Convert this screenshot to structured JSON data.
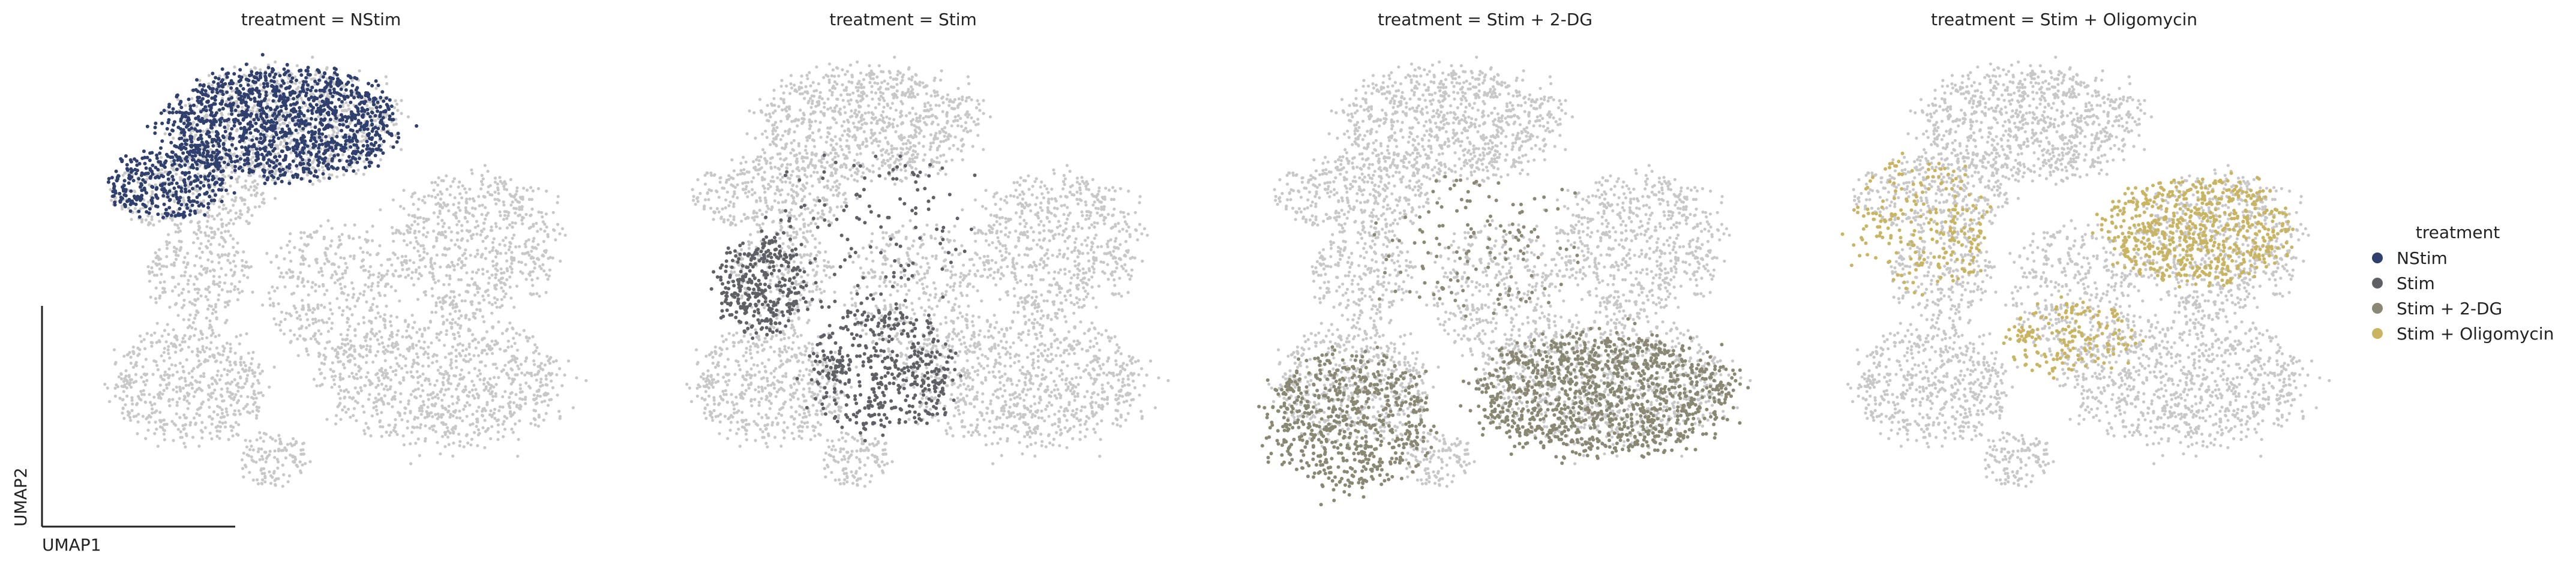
{
  "chart_data": {
    "type": "scatter",
    "grid": false,
    "xlabel": "UMAP1",
    "ylabel": "UMAP2",
    "background_color": "#c8c8c8",
    "legend": {
      "title": "treatment",
      "placement": "right",
      "entries": [
        {
          "name": "NStim",
          "color": "#2f3f6e"
        },
        {
          "name": "Stim",
          "color": "#5f6066"
        },
        {
          "name": "Stim + 2-DG",
          "color": "#8a8872"
        },
        {
          "name": "Stim + Oligomycin",
          "color": "#c9b462"
        }
      ]
    },
    "panels": [
      {
        "title": "treatment = NStim",
        "highlight": "NStim",
        "color": "#2f3f6e"
      },
      {
        "title": "treatment = Stim",
        "highlight": "Stim",
        "color": "#5f6066"
      },
      {
        "title": "treatment = Stim + 2-DG",
        "highlight": "Stim + 2-DG",
        "color": "#8a8872"
      },
      {
        "title": "treatment = Stim + Oligomycin",
        "highlight": "Stim + Oligomycin",
        "color": "#c9b462"
      }
    ],
    "xlim": [
      0,
      10
    ],
    "ylim": [
      0,
      10
    ],
    "regions": {
      "background": [
        {
          "cx": 4.3,
          "cy": 8.4,
          "rx": 2.2,
          "ry": 1.3,
          "n": 900
        },
        {
          "cx": 2.5,
          "cy": 6.9,
          "rx": 1.6,
          "ry": 0.9,
          "n": 350
        },
        {
          "cx": 7.9,
          "cy": 5.8,
          "rx": 1.7,
          "ry": 1.6,
          "n": 650
        },
        {
          "cx": 7.3,
          "cy": 2.9,
          "rx": 2.4,
          "ry": 1.5,
          "n": 900
        },
        {
          "cx": 2.5,
          "cy": 2.8,
          "rx": 1.6,
          "ry": 1.3,
          "n": 550
        },
        {
          "cx": 2.7,
          "cy": 5.2,
          "rx": 1.0,
          "ry": 1.1,
          "n": 250
        },
        {
          "cx": 5.2,
          "cy": 4.8,
          "rx": 1.3,
          "ry": 1.6,
          "n": 350
        },
        {
          "cx": 4.1,
          "cy": 1.2,
          "rx": 0.7,
          "ry": 0.6,
          "n": 120
        }
      ],
      "NStim": [
        {
          "cx": 4.3,
          "cy": 8.4,
          "rx": 2.3,
          "ry": 1.25,
          "n": 1350
        },
        {
          "cx": 2.1,
          "cy": 7.1,
          "rx": 1.2,
          "ry": 0.8,
          "n": 350
        }
      ],
      "Stim": [
        {
          "cx": 2.3,
          "cy": 4.9,
          "rx": 0.9,
          "ry": 1.1,
          "n": 320
        },
        {
          "cx": 4.6,
          "cy": 3.1,
          "rx": 1.5,
          "ry": 1.4,
          "n": 450
        },
        {
          "cx": 4.3,
          "cy": 6.0,
          "rx": 2.2,
          "ry": 2.0,
          "n": 140
        }
      ],
      "Stim + 2-DG": [
        {
          "cx": 2.4,
          "cy": 2.0,
          "rx": 1.7,
          "ry": 1.6,
          "n": 650
        },
        {
          "cx": 7.2,
          "cy": 2.6,
          "rx": 2.6,
          "ry": 1.4,
          "n": 1150
        },
        {
          "cx": 4.8,
          "cy": 5.8,
          "rx": 2.2,
          "ry": 1.6,
          "n": 140
        }
      ],
      "Stim + Oligomycin": [
        {
          "cx": 7.5,
          "cy": 6.1,
          "rx": 1.9,
          "ry": 1.2,
          "n": 650
        },
        {
          "cx": 5.1,
          "cy": 3.8,
          "rx": 1.4,
          "ry": 0.8,
          "n": 180
        },
        {
          "cx": 2.3,
          "cy": 6.2,
          "rx": 1.4,
          "ry": 1.5,
          "n": 230
        }
      ]
    }
  }
}
